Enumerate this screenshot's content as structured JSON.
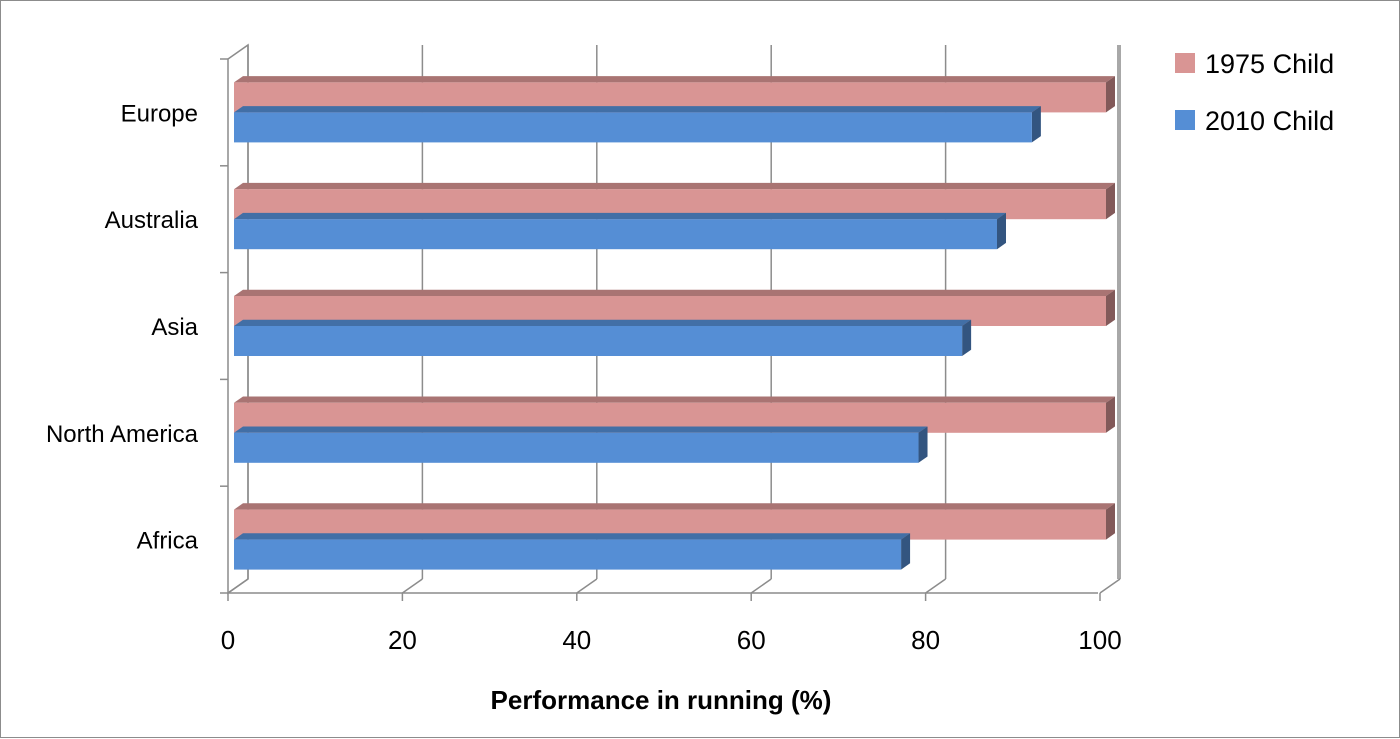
{
  "chart_data": {
    "type": "bar",
    "orientation": "horizontal",
    "style": "3d",
    "categories": [
      "Europe",
      "Australia",
      "Asia",
      "North America",
      "Africa"
    ],
    "series": [
      {
        "name": "1975 Child",
        "color": "#d99594",
        "values": [
          100,
          100,
          100,
          100,
          100
        ]
      },
      {
        "name": "2010 Child",
        "color": "#558ed5",
        "values": [
          91.5,
          87.5,
          83.5,
          78.5,
          76.5
        ]
      }
    ],
    "xlabel": "Performance in running (%)",
    "ylabel": "",
    "xlim": [
      0,
      100
    ],
    "xticks": [
      "0",
      "20",
      "40",
      "60",
      "80",
      "100"
    ],
    "grid": true,
    "legend_position": "top-right"
  }
}
